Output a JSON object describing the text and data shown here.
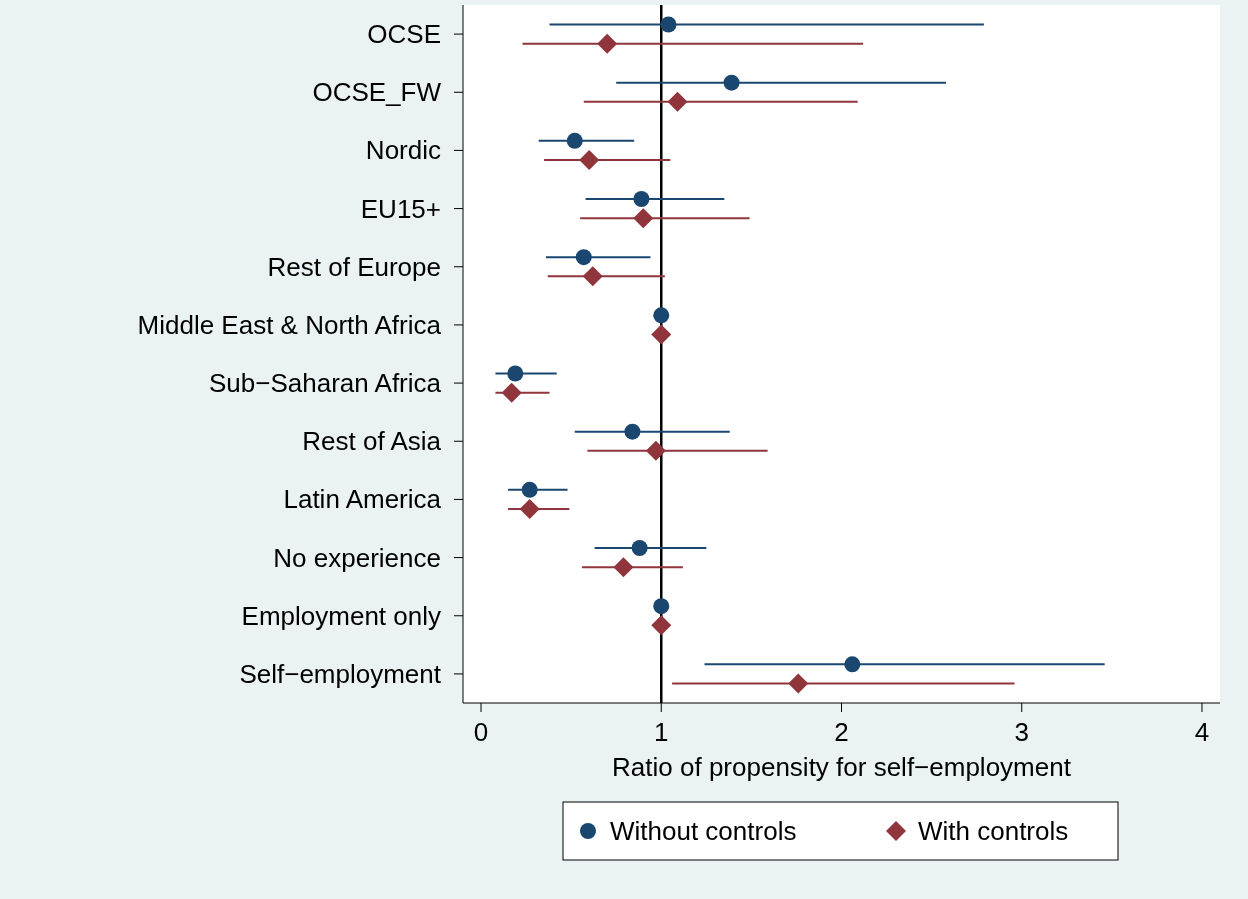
{
  "chart_data": {
    "type": "scatter",
    "orientation": "horizontal",
    "xlabel": "Ratio of propensity for self−employment",
    "categories": [
      "OCSE",
      "OCSE_FW",
      "Nordic",
      "EU15+",
      "Rest of Europe",
      "Middle East & North Africa",
      "Sub−Saharan Africa",
      "Rest of Asia",
      "Latin America",
      "No experience",
      "Employment only",
      "Self−employment"
    ],
    "series": [
      {
        "name": "Without controls",
        "color": "#1a476f",
        "marker": "circle",
        "values": [
          1.04,
          1.39,
          0.52,
          0.89,
          0.57,
          1.0,
          0.19,
          0.84,
          0.27,
          0.88,
          1.0,
          2.06
        ],
        "errors": [
          [
            0.38,
            2.79
          ],
          [
            0.75,
            2.58
          ],
          [
            0.32,
            0.85
          ],
          [
            0.58,
            1.35
          ],
          [
            0.36,
            0.94
          ],
          null,
          [
            0.08,
            0.42
          ],
          [
            0.52,
            1.38
          ],
          [
            0.15,
            0.48
          ],
          [
            0.63,
            1.25
          ],
          null,
          [
            1.24,
            3.46
          ]
        ]
      },
      {
        "name": "With controls",
        "color": "#90353b",
        "marker": "diamond",
        "values": [
          0.7,
          1.09,
          0.6,
          0.9,
          0.62,
          1.0,
          0.17,
          0.97,
          0.27,
          0.79,
          1.0,
          1.76
        ],
        "errors": [
          [
            0.23,
            2.12
          ],
          [
            0.57,
            2.09
          ],
          [
            0.35,
            1.05
          ],
          [
            0.55,
            1.49
          ],
          [
            0.37,
            1.02
          ],
          null,
          [
            0.08,
            0.38
          ],
          [
            0.59,
            1.59
          ],
          [
            0.15,
            0.49
          ],
          [
            0.56,
            1.12
          ],
          null,
          [
            1.06,
            2.96
          ]
        ]
      }
    ],
    "xlim": [
      -0.1,
      4.1
    ],
    "xticks": [
      0,
      1,
      2,
      3,
      4
    ],
    "ref_lines": [
      {
        "axis": "x",
        "value": 1,
        "color": "#000000"
      }
    ],
    "legend": "bottom",
    "grid": false
  }
}
